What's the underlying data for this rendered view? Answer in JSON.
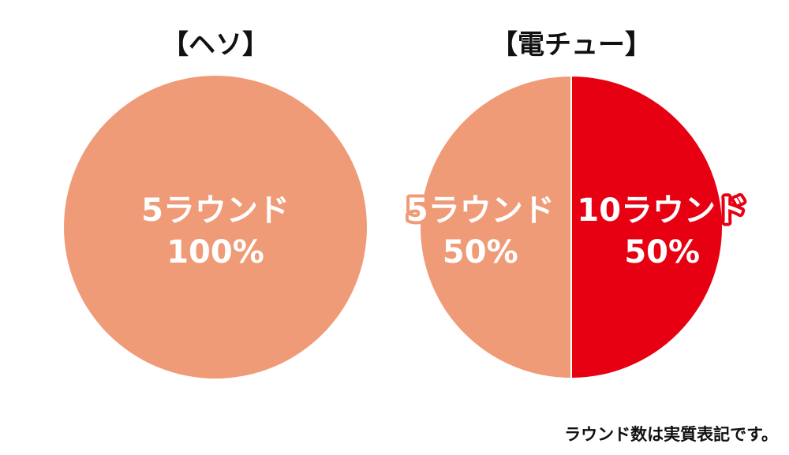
{
  "chart_data": [
    {
      "type": "pie",
      "title": "【ヘソ】",
      "categories": [
        "5ラウンド"
      ],
      "values": [
        100
      ],
      "value_labels": [
        "100%"
      ],
      "colors": [
        "#f09b78"
      ]
    },
    {
      "type": "pie",
      "title": "【電チュー】",
      "categories": [
        "10ラウンド",
        "5ラウンド"
      ],
      "values": [
        50,
        50
      ],
      "value_labels": [
        "50%",
        "50%"
      ],
      "colors": [
        "#e60012",
        "#f09b78"
      ]
    }
  ],
  "footnote": "ラウンド数は実質表記です。"
}
